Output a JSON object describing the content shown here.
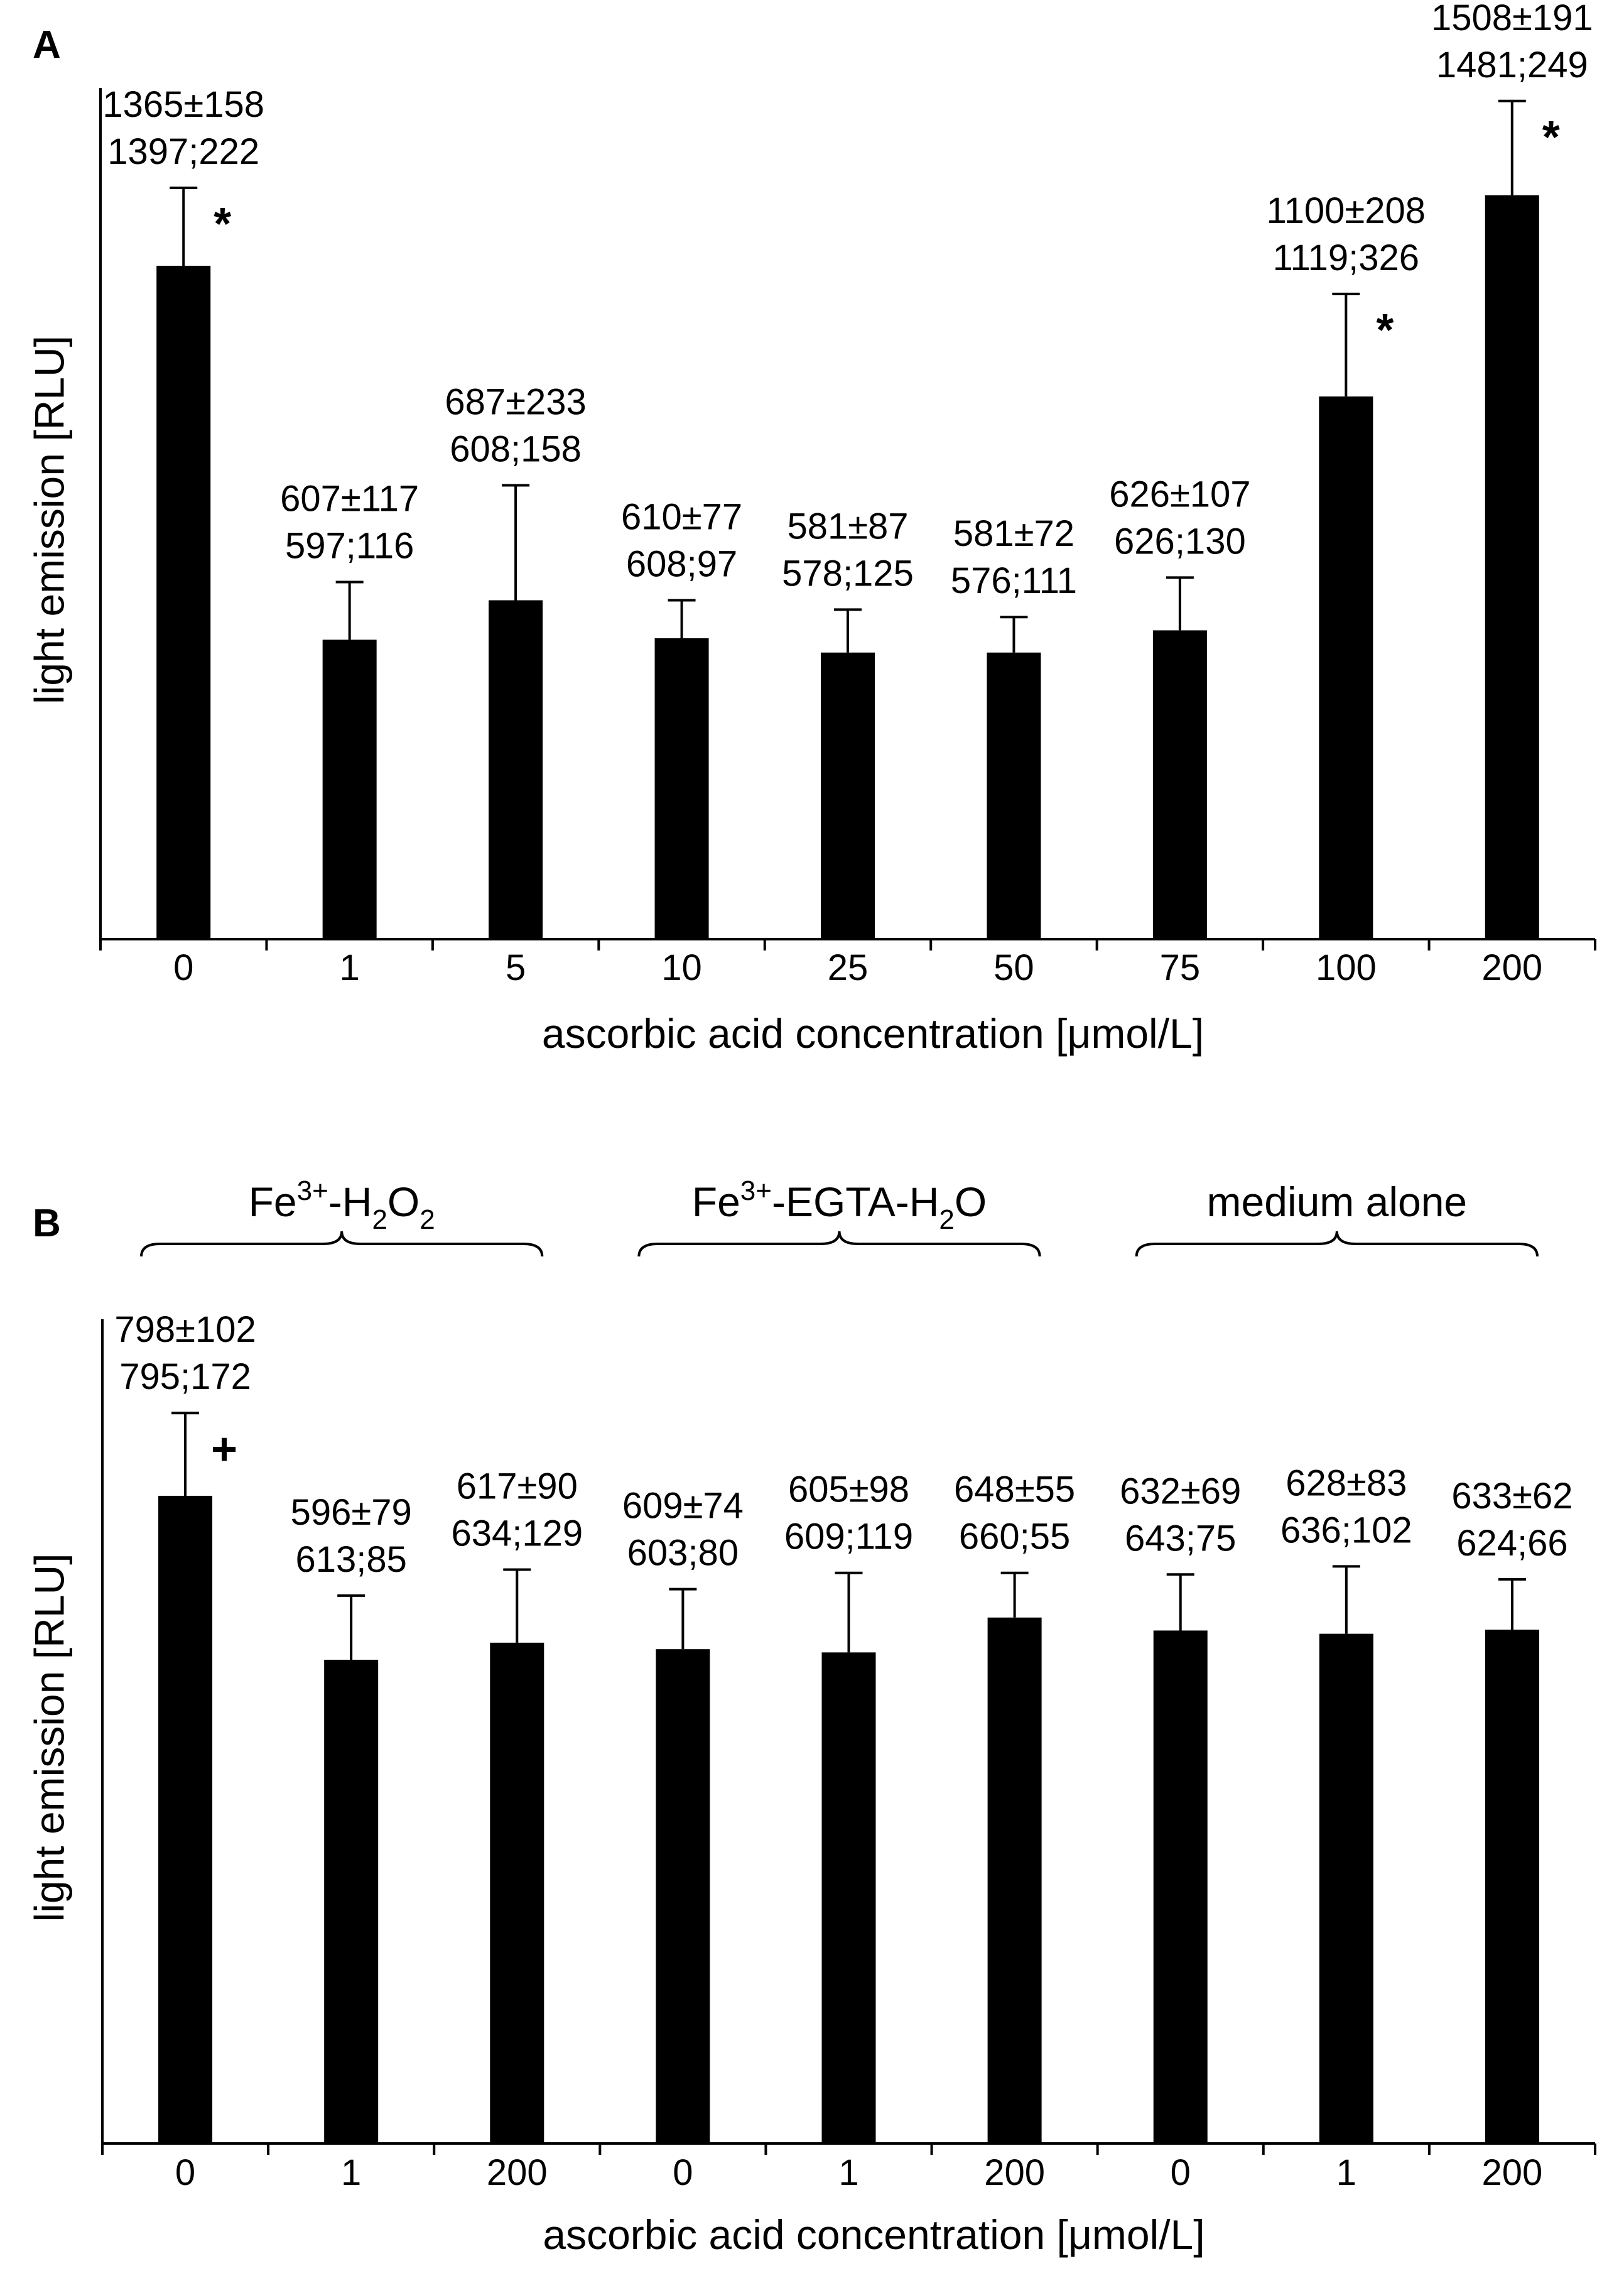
{
  "chart_data": [
    {
      "type": "bar",
      "panel": "A",
      "xlabel": "ascorbic acid concentration [μmol/L]",
      "ylabel": "light emission [RLU]",
      "ylim": [
        0,
        1700
      ],
      "y_ticks_shown": false,
      "categories": [
        "0",
        "1",
        "5",
        "10",
        "25",
        "50",
        "75",
        "100",
        "200"
      ],
      "values": [
        1365,
        607,
        687,
        610,
        581,
        581,
        626,
        1100,
        1508
      ],
      "errors": [
        158,
        117,
        233,
        77,
        87,
        72,
        107,
        208,
        191
      ],
      "label_line1": [
        "1365±158",
        "607±117",
        "687±233",
        "610±77",
        "581±87",
        "581±72",
        "626±107",
        "1100±208",
        "1508±191"
      ],
      "label_line2": [
        "1397;222",
        "597;116",
        "608;158",
        "608;97",
        "578;125",
        "576;111",
        "626;130",
        "1119;326",
        "1481;249"
      ],
      "markers": [
        "*",
        "",
        "",
        "",
        "",
        "",
        "",
        "*",
        "*"
      ]
    },
    {
      "type": "bar",
      "panel": "B",
      "xlabel": "ascorbic acid concentration [μmol/L]",
      "ylabel": "light emission [RLU]",
      "ylim": [
        0,
        1000
      ],
      "y_ticks_shown": false,
      "categories": [
        "0",
        "1",
        "200",
        "0",
        "1",
        "200",
        "0",
        "1",
        "200"
      ],
      "values": [
        798,
        596,
        617,
        609,
        605,
        648,
        632,
        628,
        633
      ],
      "errors": [
        102,
        79,
        90,
        74,
        98,
        55,
        69,
        83,
        62
      ],
      "label_line1": [
        "798±102",
        "596±79",
        "617±90",
        "609±74",
        "605±98",
        "648±55",
        "632±69",
        "628±83",
        "633±62"
      ],
      "label_line2": [
        "795;172",
        "613;85",
        "634;129",
        "603;80",
        "609;119",
        "660;55",
        "643;75",
        "636;102",
        "624;66"
      ],
      "markers": [
        "+",
        "",
        "",
        "",
        "",
        "",
        "",
        "",
        ""
      ],
      "groups": [
        {
          "parts": [
            "Fe",
            "3+",
            "-H",
            "2",
            "O",
            "2"
          ],
          "first": 0,
          "last": 2
        },
        {
          "parts": [
            "Fe",
            "3+",
            "-EGTA-H",
            "2",
            "O"
          ],
          "first": 3,
          "last": 5
        },
        {
          "parts": [
            "medium alone"
          ],
          "first": 6,
          "last": 8
        }
      ]
    }
  ]
}
